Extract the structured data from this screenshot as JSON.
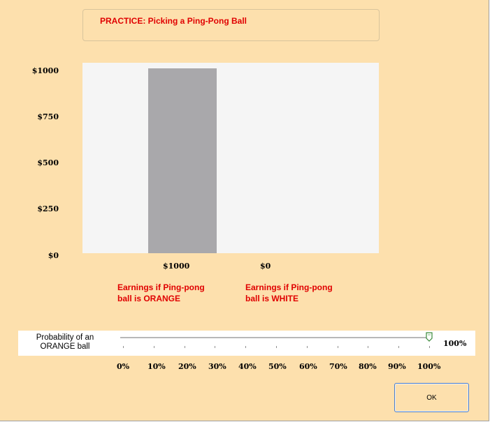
{
  "title": "PRACTICE: Picking a Ping-Pong Ball",
  "chart_data": {
    "type": "bar",
    "categories": [
      "Earnings if Ping-pong ball is ORANGE",
      "Earnings if Ping-pong ball is WHITE"
    ],
    "values": [
      1000,
      0
    ],
    "value_labels": [
      "$1000",
      "$0"
    ],
    "ytick_labels": [
      "$1000",
      "$750",
      "$500",
      "$250",
      "$0"
    ],
    "ylim": [
      0,
      1000
    ],
    "bar_color": "#a9a8ab",
    "plot_bg": "#f5f5f5"
  },
  "earnings": {
    "orange": {
      "line1": "Earnings if Ping-pong",
      "line2": "ball is ORANGE"
    },
    "white": {
      "line1": "Earnings if Ping-pong",
      "line2": "ball is WHITE"
    }
  },
  "slider": {
    "label_line1": "Probability of an",
    "label_line2": "ORANGE ball",
    "value": 1.0,
    "value_text": "100%",
    "scale": [
      "0%",
      "10%",
      "20%",
      "30%",
      "40%",
      "50%",
      "60%",
      "70%",
      "80%",
      "90%",
      "100%"
    ]
  },
  "ok_label": "OK",
  "colors": {
    "background": "#fde0ad",
    "accent_text": "#e00000",
    "button_border": "#4f7fc7"
  }
}
